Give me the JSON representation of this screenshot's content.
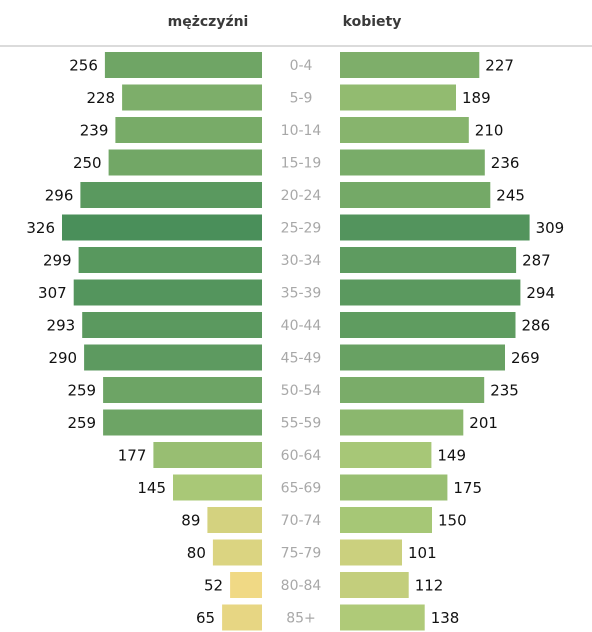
{
  "chart_data": {
    "type": "bar",
    "subtype": "population-pyramid",
    "left_header": "mężczyźni",
    "right_header": "kobiety",
    "categories": [
      "0-4",
      "5-9",
      "10-14",
      "15-19",
      "20-24",
      "25-29",
      "30-34",
      "35-39",
      "40-44",
      "45-49",
      "50-54",
      "55-59",
      "60-64",
      "65-69",
      "70-74",
      "75-79",
      "80-84",
      "85+"
    ],
    "series": [
      {
        "name": "mężczyźni",
        "side": "left",
        "values": [
          256,
          228,
          239,
          250,
          296,
          326,
          299,
          307,
          293,
          290,
          259,
          259,
          177,
          145,
          89,
          80,
          52,
          65
        ]
      },
      {
        "name": "kobiety",
        "side": "right",
        "values": [
          227,
          189,
          210,
          236,
          245,
          309,
          287,
          294,
          286,
          269,
          235,
          201,
          149,
          175,
          150,
          101,
          112,
          138
        ]
      }
    ],
    "color_scale": {
      "low": "#f2d985",
      "mid": "#a8c877",
      "high": "#4a8f5a"
    },
    "grid": false,
    "legend": "none"
  }
}
